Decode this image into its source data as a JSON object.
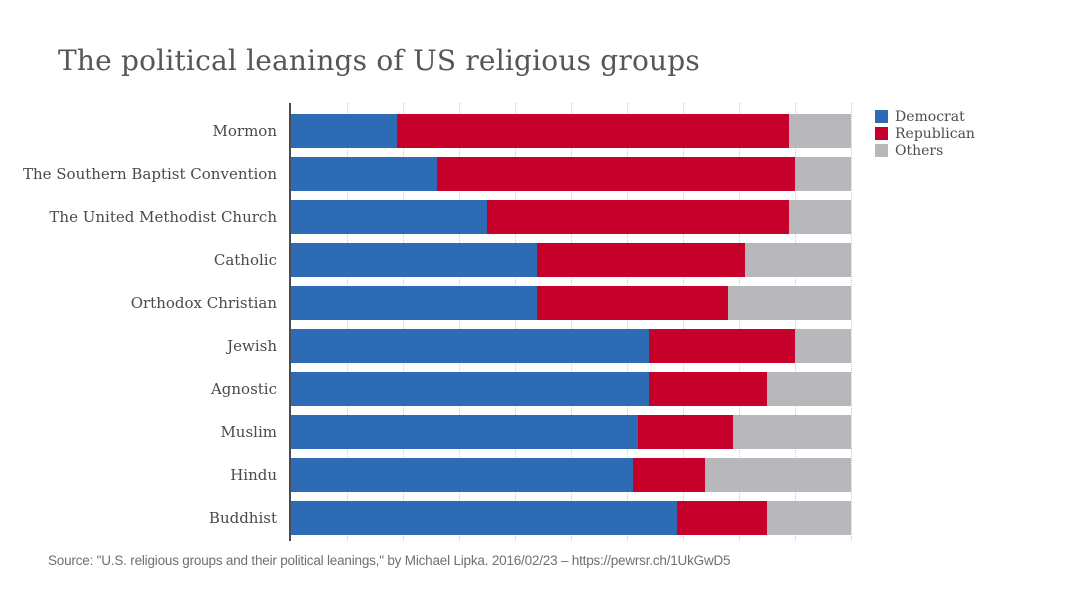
{
  "title": "The political leanings of US religious groups",
  "source": "Source: \"U.S. religious groups and their political leanings,\" by Michael Lipka. 2016/02/23 – https://pewrsr.ch/1UkGwD5",
  "colors": {
    "democrat": "#2d6cb4",
    "republican": "#c5002b",
    "others": "#b8b8bc",
    "axis": "#4b4b4d",
    "gridline": "#c9c9c9",
    "title_text": "#56565a",
    "label_text": "#4a4a4e",
    "source_text": "#707073"
  },
  "legend": [
    {
      "label": "Democrat",
      "color": "#2d6cb4"
    },
    {
      "label": "Republican",
      "color": "#c5002b"
    },
    {
      "label": "Others",
      "color": "#b8b8bc"
    }
  ],
  "chart_data": {
    "type": "bar",
    "orientation": "horizontal",
    "stacked": true,
    "title": "The political leanings of US religious groups",
    "xlabel": "",
    "ylabel": "",
    "xlim": [
      0,
      100
    ],
    "unit": "percent",
    "gridlines_every": 10,
    "grid": true,
    "legend_position": "top-right",
    "categories": [
      "Mormon",
      "The Southern Baptist Convention",
      "The United Methodist Church",
      "Catholic",
      "Orthodox Christian",
      "Jewish",
      "Agnostic",
      "Muslim",
      "Hindu",
      "Buddhist"
    ],
    "series": [
      {
        "name": "Democrat",
        "color": "#2d6cb4",
        "values": [
          19,
          26,
          35,
          44,
          44,
          64,
          64,
          62,
          61,
          69
        ]
      },
      {
        "name": "Republican",
        "color": "#c5002b",
        "values": [
          70,
          64,
          54,
          37,
          34,
          26,
          21,
          17,
          13,
          16
        ]
      },
      {
        "name": "Others",
        "color": "#b8b8bc",
        "values": [
          11,
          10,
          11,
          19,
          22,
          10,
          15,
          21,
          26,
          15
        ]
      }
    ]
  }
}
